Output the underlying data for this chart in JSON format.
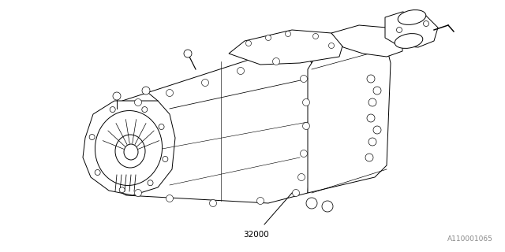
{
  "background_color": "#ffffff",
  "line_color": "#000000",
  "line_width": 0.7,
  "part_number": "32000",
  "diagram_id": "A110001065",
  "part_number_fontsize": 7.5,
  "diagram_id_fontsize": 6.5
}
